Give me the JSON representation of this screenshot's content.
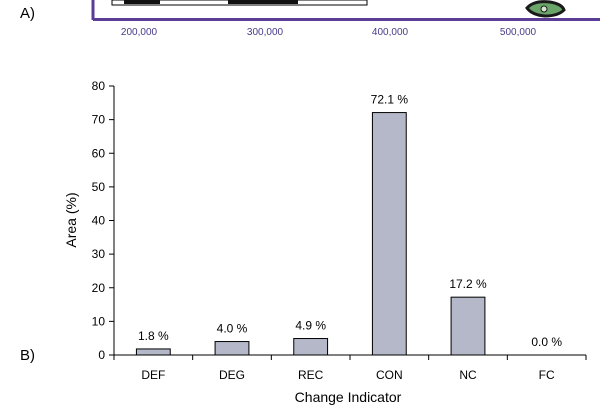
{
  "panel_a": {
    "label": "A)",
    "ticks": [
      "200,000",
      "300,000",
      "400,000",
      "500,000"
    ],
    "frame_color": "#5b3c96",
    "tick_color": "#4a3a8a"
  },
  "panel_b": {
    "label": "B)"
  },
  "chart_data": {
    "type": "bar",
    "categories": [
      "DEF",
      "DEG",
      "REC",
      "CON",
      "NC",
      "FC"
    ],
    "values": [
      1.8,
      4.0,
      4.9,
      72.1,
      17.2,
      0.0
    ],
    "data_labels": [
      "1.8 %",
      "4.0 %",
      "4.9 %",
      "72.1 %",
      "17.2 %",
      "0.0 %"
    ],
    "xlabel": "Change Indicator",
    "ylabel": "Area (%)",
    "ylim": [
      0,
      80
    ],
    "yticks": [
      0,
      10,
      20,
      30,
      40,
      50,
      60,
      70,
      80
    ],
    "grid": false,
    "bar_color": "#b4b8c8"
  }
}
